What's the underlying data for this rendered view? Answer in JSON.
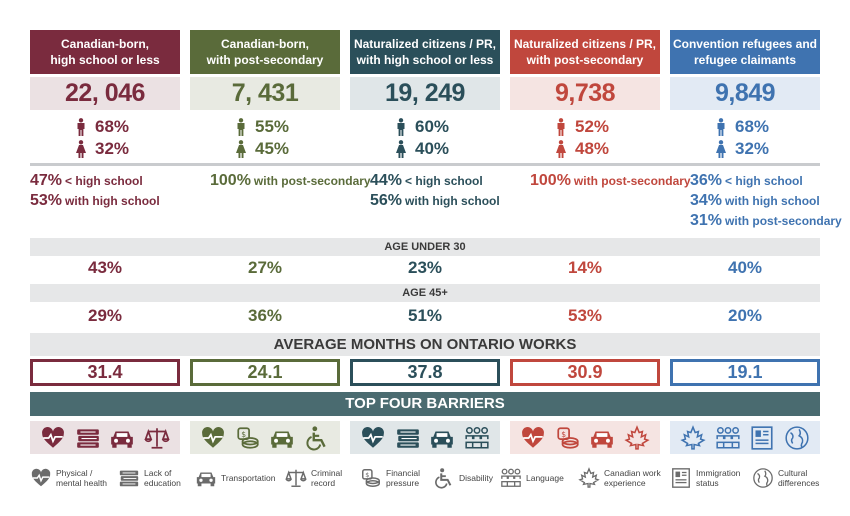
{
  "colors": {
    "col1": "#7a2b3e",
    "col1_light": "#ebe1e3",
    "col2": "#5a6b3a",
    "col2_light": "#e8eae2",
    "col3": "#2b4f5a",
    "col3_light": "#e0e6e8",
    "col4": "#c0473d",
    "col4_light": "#f5e4e2",
    "col5": "#3f73b0",
    "col5_light": "#e2eaf4",
    "band": "#e6e7e8",
    "banner": "#4a6b70"
  },
  "columns": [
    {
      "header": [
        "Canadian-born,",
        "high school or less"
      ],
      "total": "22, 046",
      "male": "68%",
      "female": "32%",
      "education": [
        {
          "pct": "47%",
          "text": "< high school"
        },
        {
          "pct": "53%",
          "text": "with high school"
        }
      ],
      "age_under_30": "43%",
      "age_45_plus": "29%",
      "months": "31.4"
    },
    {
      "header": [
        "Canadian-born,",
        "with post-secondary"
      ],
      "total": "7, 431",
      "male": "55%",
      "female": "45%",
      "education": [
        {
          "pct": "100%",
          "text": "with post-secondary"
        }
      ],
      "age_under_30": "27%",
      "age_45_plus": "36%",
      "months": "24.1"
    },
    {
      "header": [
        "Naturalized citizens / PR,",
        "with high school or less"
      ],
      "total": "19, 249",
      "male": "60%",
      "female": "40%",
      "education": [
        {
          "pct": "44%",
          "text": "< high school"
        },
        {
          "pct": "56%",
          "text": "with high school"
        }
      ],
      "age_under_30": "23%",
      "age_45_plus": "51%",
      "months": "37.8"
    },
    {
      "header": [
        "Naturalized citizens / PR,",
        "with post-secondary"
      ],
      "total": "9,738",
      "male": "52%",
      "female": "48%",
      "education": [
        {
          "pct": "100%",
          "text": "with post-secondary"
        }
      ],
      "age_under_30": "14%",
      "age_45_plus": "53%",
      "months": "30.9"
    },
    {
      "header": [
        "Convention refugees and",
        "refugee claimants"
      ],
      "total": "9,849",
      "male": "68%",
      "female": "32%",
      "education": [
        {
          "pct": "36%",
          "text": "< high school"
        },
        {
          "pct": "34%",
          "text": "with high school"
        },
        {
          "pct": "31%",
          "text": "with post-secondary"
        }
      ],
      "age_under_30": "40%",
      "age_45_plus": "20%",
      "months": "19.1"
    }
  ],
  "labels": {
    "age_under_30": "AGE UNDER 30",
    "age_45_plus": "AGE 45+",
    "avg_months": "AVERAGE MONTHS ON ONTARIO WORKS",
    "top_barriers": "TOP FOUR BARRIERS"
  },
  "barriers_by_column": [
    [
      "heart-pulse-icon",
      "books-icon",
      "car-icon",
      "scales-icon"
    ],
    [
      "heart-pulse-icon",
      "coins-icon",
      "car-icon",
      "wheelchair-icon"
    ],
    [
      "heart-pulse-icon",
      "books-icon",
      "car-icon",
      "people-icon"
    ],
    [
      "heart-pulse-icon",
      "coins-icon",
      "car-icon",
      "maple-leaf-icon"
    ],
    [
      "maple-leaf-icon",
      "people-icon",
      "document-icon",
      "globe-icon"
    ]
  ],
  "legend": [
    {
      "icon": "heart-pulse-icon",
      "label": [
        "Physical /",
        "mental health"
      ]
    },
    {
      "icon": "books-icon",
      "label": [
        "Lack of",
        "education"
      ]
    },
    {
      "icon": "car-icon",
      "label": [
        "Transportation"
      ]
    },
    {
      "icon": "scales-icon",
      "label": [
        "Criminal",
        "record"
      ]
    },
    {
      "icon": "coins-icon",
      "label": [
        "Financial",
        "pressure"
      ]
    },
    {
      "icon": "wheelchair-icon",
      "label": [
        "Disability"
      ]
    },
    {
      "icon": "people-icon",
      "label": [
        "Language"
      ]
    },
    {
      "icon": "maple-leaf-icon",
      "label": [
        "Canadian work",
        "experience"
      ]
    },
    {
      "icon": "document-icon",
      "label": [
        "Immigration",
        "status"
      ]
    },
    {
      "icon": "globe-icon",
      "label": [
        "Cultural",
        "differences"
      ]
    }
  ],
  "chart_data": {
    "type": "table",
    "categories": [
      "Canadian-born, high school or less",
      "Canadian-born, with post-secondary",
      "Naturalized citizens / PR, with high school or less",
      "Naturalized citizens / PR, with post-secondary",
      "Convention refugees and refugee claimants"
    ],
    "series": [
      {
        "values": [
          22046,
          7431,
          19249,
          9738,
          9849
        ]
      },
      {
        "values": [
          68,
          55,
          60,
          52,
          68
        ]
      },
      {
        "values": [
          32,
          45,
          40,
          48,
          32
        ]
      },
      {
        "name": "AGE UNDER 30",
        "values": [
          43,
          27,
          23,
          14,
          40
        ]
      },
      {
        "name": "AGE 45+",
        "values": [
          29,
          36,
          51,
          53,
          20
        ]
      },
      {
        "name": "AVERAGE MONTHS ON ONTARIO WORKS",
        "values": [
          31.4,
          24.1,
          37.8,
          30.9,
          19.1
        ]
      }
    ]
  }
}
